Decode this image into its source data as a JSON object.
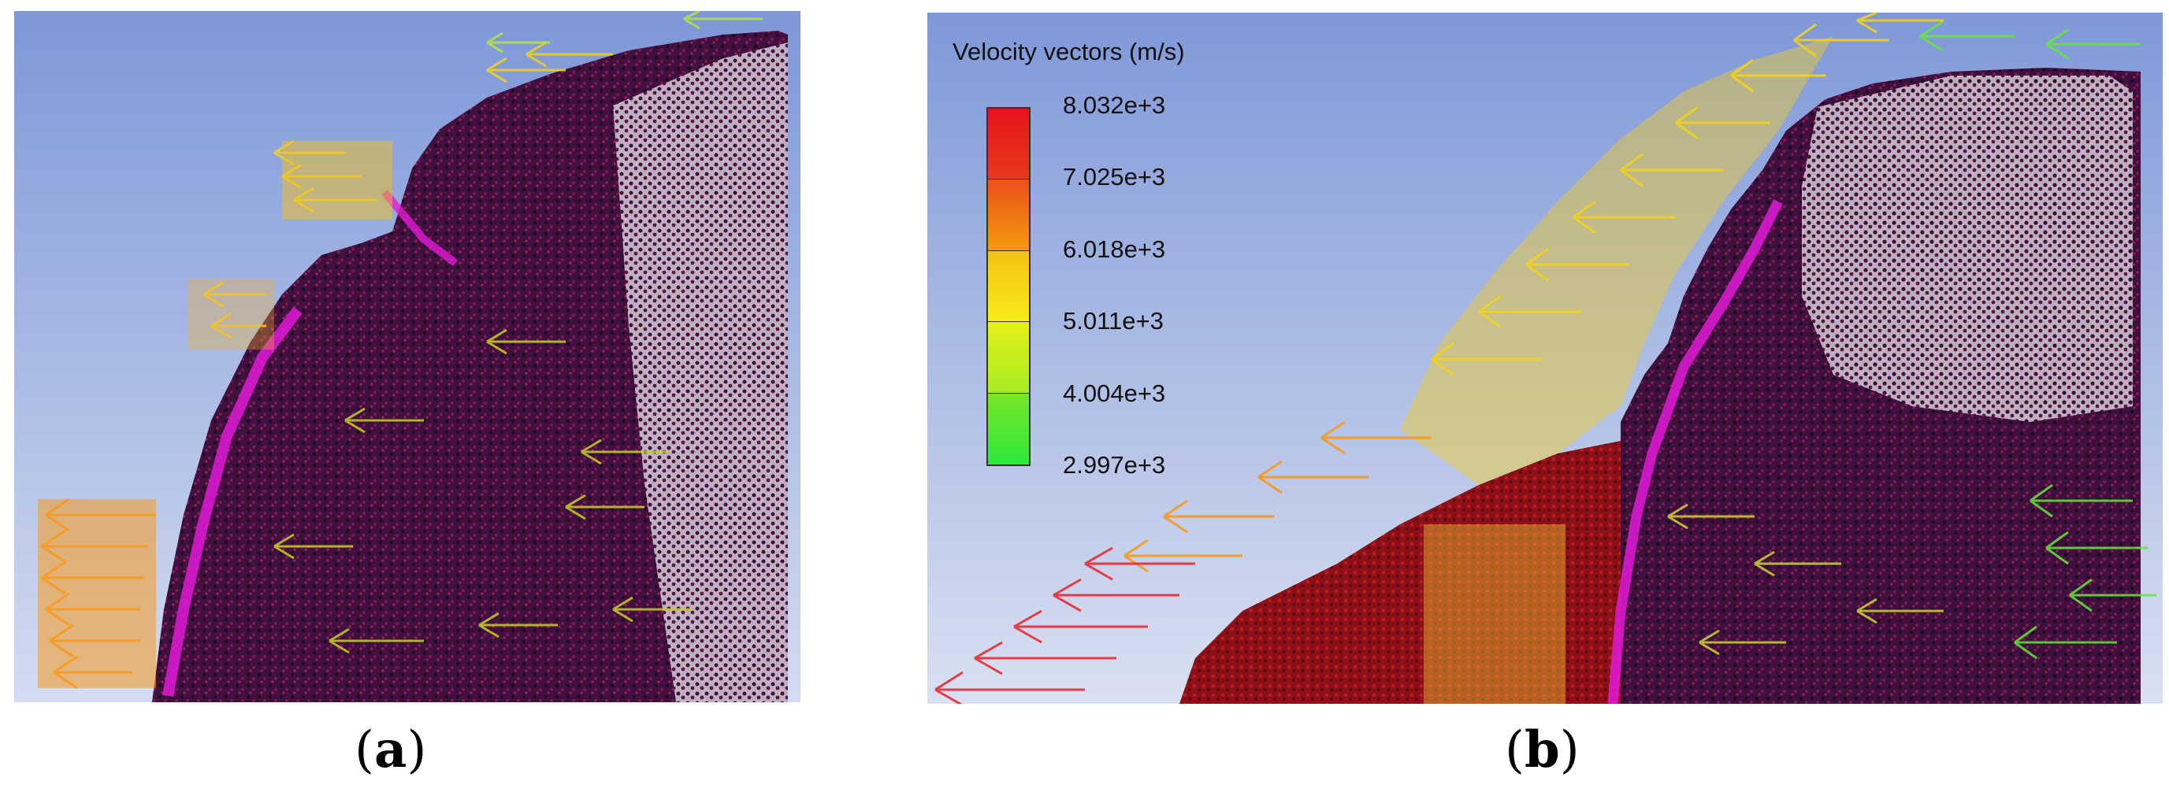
{
  "figure": {
    "panel_a": {
      "caption_label": "a"
    },
    "panel_b": {
      "caption_label": "b",
      "legend": {
        "title": "Velocity vectors (m/s)",
        "ticks": [
          "8.032e+3",
          "7.025e+3",
          "6.018e+3",
          "5.011e+3",
          "4.004e+3",
          "2.997e+3"
        ],
        "colors": [
          "#e8141c",
          "#f07a10",
          "#f7e614",
          "#c8f014",
          "#5ae62a",
          "#2ee83a"
        ]
      }
    },
    "colors": {
      "sky_top": "#7f98d8",
      "sky_bottom": "#cfd9ef",
      "particle_body": "#3b0f3e",
      "particle_red": "#9c1a26",
      "front_magenta": "#e21ad8",
      "vector_orange": "#f79a1e",
      "vector_yellow": "#f2d21e",
      "vector_green": "#66e63a",
      "vector_red": "#e8222a"
    }
  }
}
